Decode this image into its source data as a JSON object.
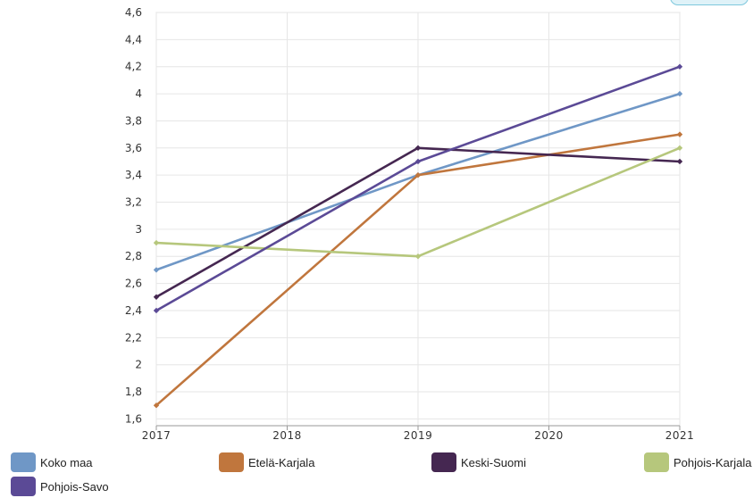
{
  "title": "",
  "chart_data": {
    "type": "line",
    "title": "",
    "xlabel": "",
    "ylabel": "",
    "x": [
      2017,
      2018,
      2019,
      2020,
      2021
    ],
    "x_ticks": [
      "2017",
      "2018",
      "2019",
      "2020",
      "2021"
    ],
    "y_ticks": [
      "1,6",
      "1,8",
      "2",
      "2,2",
      "2,4",
      "2,6",
      "2,8",
      "3",
      "3,2",
      "3,4",
      "3,6",
      "3,8",
      "4",
      "4,2",
      "4,4",
      "4,6"
    ],
    "ylim": [
      1.55,
      4.6
    ],
    "grid": true,
    "legend_position": "bottom",
    "series": [
      {
        "name": "Koko maa",
        "color": "#6f97c6",
        "points": [
          [
            2017,
            2.7
          ],
          [
            2019,
            3.4
          ],
          [
            2021,
            4.0
          ]
        ]
      },
      {
        "name": "Etelä-Karjala",
        "color": "#c0763d",
        "points": [
          [
            2017,
            1.7
          ],
          [
            2019,
            3.4
          ],
          [
            2021,
            3.7
          ]
        ]
      },
      {
        "name": "Keski-Suomi",
        "color": "#452751",
        "points": [
          [
            2017,
            2.5
          ],
          [
            2019,
            3.6
          ],
          [
            2021,
            3.5
          ]
        ]
      },
      {
        "name": "Pohjois-Karjala",
        "color": "#b6c77c",
        "points": [
          [
            2017,
            2.9
          ],
          [
            2019,
            2.8
          ],
          [
            2021,
            3.6
          ]
        ]
      },
      {
        "name": "Pohjois-Savo",
        "color": "#5b4a96",
        "points": [
          [
            2017,
            2.4
          ],
          [
            2019,
            3.5
          ],
          [
            2021,
            4.2
          ]
        ]
      }
    ]
  },
  "legend": [
    {
      "label": "Koko maa",
      "color": "#6f97c6"
    },
    {
      "label": "Etelä-Karjala",
      "color": "#c0763d"
    },
    {
      "label": "Keski-Suomi",
      "color": "#452751"
    },
    {
      "label": "Pohjois-Karjala",
      "color": "#b6c77c"
    },
    {
      "label": "Pohjois-Savo",
      "color": "#5b4a96"
    }
  ]
}
